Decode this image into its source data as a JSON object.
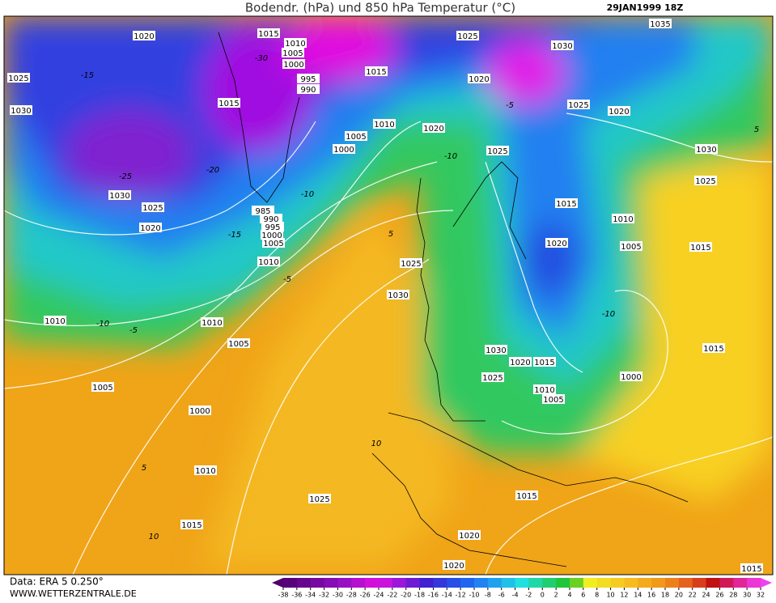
{
  "header": {
    "title": "Bodendr. (hPa) und 850 hPa Temperatur (°C)",
    "date": "29JAN1999 18Z"
  },
  "footer": {
    "source": "Data: ERA 5 0.250°",
    "website": "WWW.WETTERZENTRALE.DE"
  },
  "colorbar": {
    "ticks": [
      -38,
      -36,
      -34,
      -32,
      -30,
      -28,
      -26,
      -24,
      -22,
      -20,
      -18,
      -16,
      -14,
      -12,
      -10,
      -8,
      -6,
      -4,
      -2,
      0,
      2,
      4,
      6,
      8,
      10,
      12,
      14,
      16,
      18,
      20,
      22,
      24,
      26,
      28,
      30,
      32
    ]
  },
  "isobar_labels": [
    1020,
    1015,
    1010,
    1005,
    1000,
    995,
    990,
    1015,
    1015,
    1025,
    1030,
    1035,
    1025,
    1030,
    1020,
    1025,
    1020,
    1010,
    1005,
    1000,
    1020,
    1025,
    1030,
    1025,
    1030,
    1025,
    1020,
    985,
    990,
    995,
    1000,
    1005,
    1010,
    1015,
    1010,
    1020,
    1005,
    1015,
    1025,
    1030,
    1010,
    1010,
    1005,
    1015,
    1030,
    1020,
    1015,
    1025,
    1000,
    1010,
    1005,
    1005,
    1000,
    1010,
    1025,
    1015,
    1015,
    1020,
    1020,
    1015
  ],
  "temperature_labels": [
    -30,
    -25,
    -20,
    -15,
    -15,
    -10,
    -10,
    -5,
    -5,
    -10,
    -5,
    5,
    10,
    5,
    10,
    -10,
    5
  ]
}
